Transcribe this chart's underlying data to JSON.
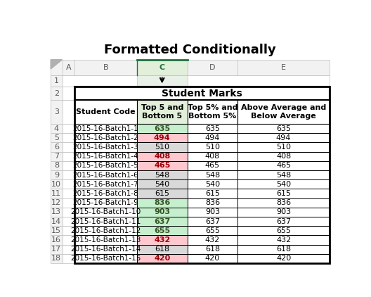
{
  "title": "Formatted Conditionally",
  "merged_header": "Student Marks",
  "sub_headers": [
    "Student Code",
    "Top 5 and\nBottom 5",
    "Top 5% and\nBottom 5%",
    "Above Average and\nBelow Average"
  ],
  "students": [
    "2015-16-Batch1-1",
    "2015-16-Batch1-2",
    "2015-16-Batch1-3",
    "2015-16-Batch1-4",
    "2015-16-Batch1-5",
    "2015-16-Batch1-6",
    "2015-16-Batch1-7",
    "2015-16-Batch1-8",
    "2015-16-Batch1-9",
    "2015-16-Batch1-10",
    "2015-16-Batch1-11",
    "2015-16-Batch1-12",
    "2015-16-Batch1-13",
    "2015-16-Batch1-14",
    "2015-16-Batch1-15"
  ],
  "marks": [
    635,
    494,
    510,
    408,
    465,
    548,
    540,
    615,
    836,
    903,
    637,
    655,
    432,
    618,
    420
  ],
  "col_c_bg_colors": [
    "#c6efce",
    "#ffc7ce",
    "#d9d9d9",
    "#ffc7ce",
    "#ffc7ce",
    "#d9d9d9",
    "#d9d9d9",
    "#d9d9d9",
    "#c6efce",
    "#c6efce",
    "#c6efce",
    "#c6efce",
    "#ffc7ce",
    "#d9d9d9",
    "#ffc7ce"
  ],
  "col_c_text_colors": [
    "#375623",
    "#9c0006",
    "#000000",
    "#9c0006",
    "#9c0006",
    "#000000",
    "#000000",
    "#000000",
    "#375623",
    "#375623",
    "#375623",
    "#375623",
    "#9c0006",
    "#000000",
    "#9c0006"
  ],
  "bg_color": "#ffffff",
  "col_c_header_bg": "#e2efda",
  "col_c_header_text": "#375623",
  "excel_header_bg": "#f2f2f2",
  "excel_header_text": "#595959",
  "grid_color": "#bfbfbf",
  "table_border_color": "#000000",
  "title_fontsize": 13,
  "header_fontsize": 8,
  "subheader_fontsize": 8,
  "data_fontsize": 8
}
